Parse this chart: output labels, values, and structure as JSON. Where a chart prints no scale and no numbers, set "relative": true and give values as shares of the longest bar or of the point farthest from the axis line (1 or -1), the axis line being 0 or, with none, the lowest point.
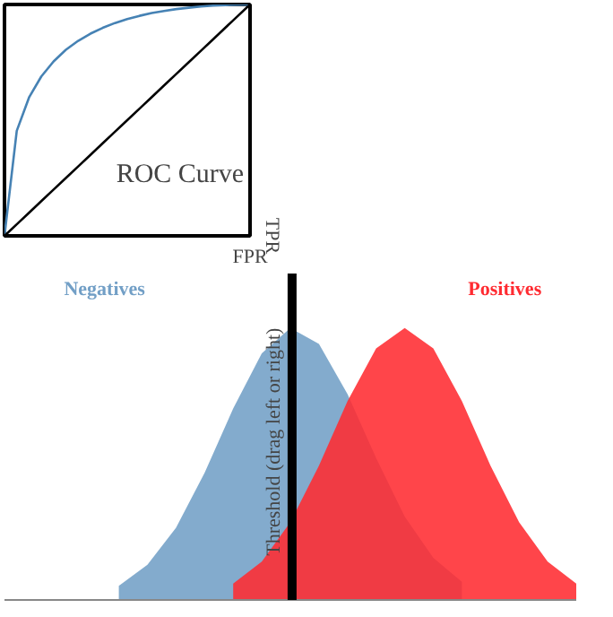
{
  "chart_data": [
    {
      "type": "line",
      "relative": true,
      "xlabel": "FPR",
      "ylabel": "TPR",
      "annotations": [
        "ROC Curve"
      ],
      "grid": false,
      "categories": [
        null,
        null,
        null,
        null,
        null,
        null,
        null,
        null,
        null,
        null,
        null,
        null,
        null,
        null,
        null,
        null,
        null,
        null,
        null,
        null,
        null
      ],
      "series": [
        {
          "color": "#4682b4",
          "values": [
            0,
            0.454,
            0.598,
            0.689,
            0.754,
            0.804,
            0.843,
            0.874,
            0.899,
            0.92,
            0.937,
            0.951,
            0.963,
            0.972,
            0.98,
            0.986,
            0.991,
            0.995,
            0.9975,
            0.9993,
            1
          ]
        },
        {
          "color": "#000000",
          "values": [
            0,
            0.05,
            0.1,
            0.15,
            0.2,
            0.25,
            0.3,
            0.35,
            0.4,
            0.45,
            0.5,
            0.55,
            0.6,
            0.65,
            0.7,
            0.75,
            0.8,
            0.85,
            0.9,
            0.95,
            1
          ]
        }
      ]
    },
    {
      "type": "area",
      "relative": true,
      "grid": false,
      "annotations": [
        "Threshold (drag left or right)"
      ],
      "categories": [
        null,
        null,
        null,
        null,
        null,
        null,
        null,
        null,
        null,
        null,
        null,
        null,
        null,
        null,
        null,
        null,
        null,
        null,
        null,
        null,
        null
      ],
      "series": [
        {
          "name": "Negatives",
          "color": "#729fc6",
          "values": [
            null,
            null,
            null,
            null,
            0.052,
            0.129,
            0.265,
            0.467,
            0.704,
            0.907,
            1.0,
            0.941,
            0.757,
            0.522,
            0.307,
            0.155,
            0.067,
            null,
            null,
            null,
            null
          ]
        },
        {
          "name": "Positives",
          "color": "#ff2b31",
          "values": [
            null,
            null,
            null,
            null,
            null,
            null,
            null,
            null,
            0.06,
            0.141,
            0.286,
            0.494,
            0.731,
            0.925,
            1.0,
            0.925,
            0.731,
            0.494,
            0.286,
            0.141,
            0.06
          ]
        }
      ]
    }
  ]
}
